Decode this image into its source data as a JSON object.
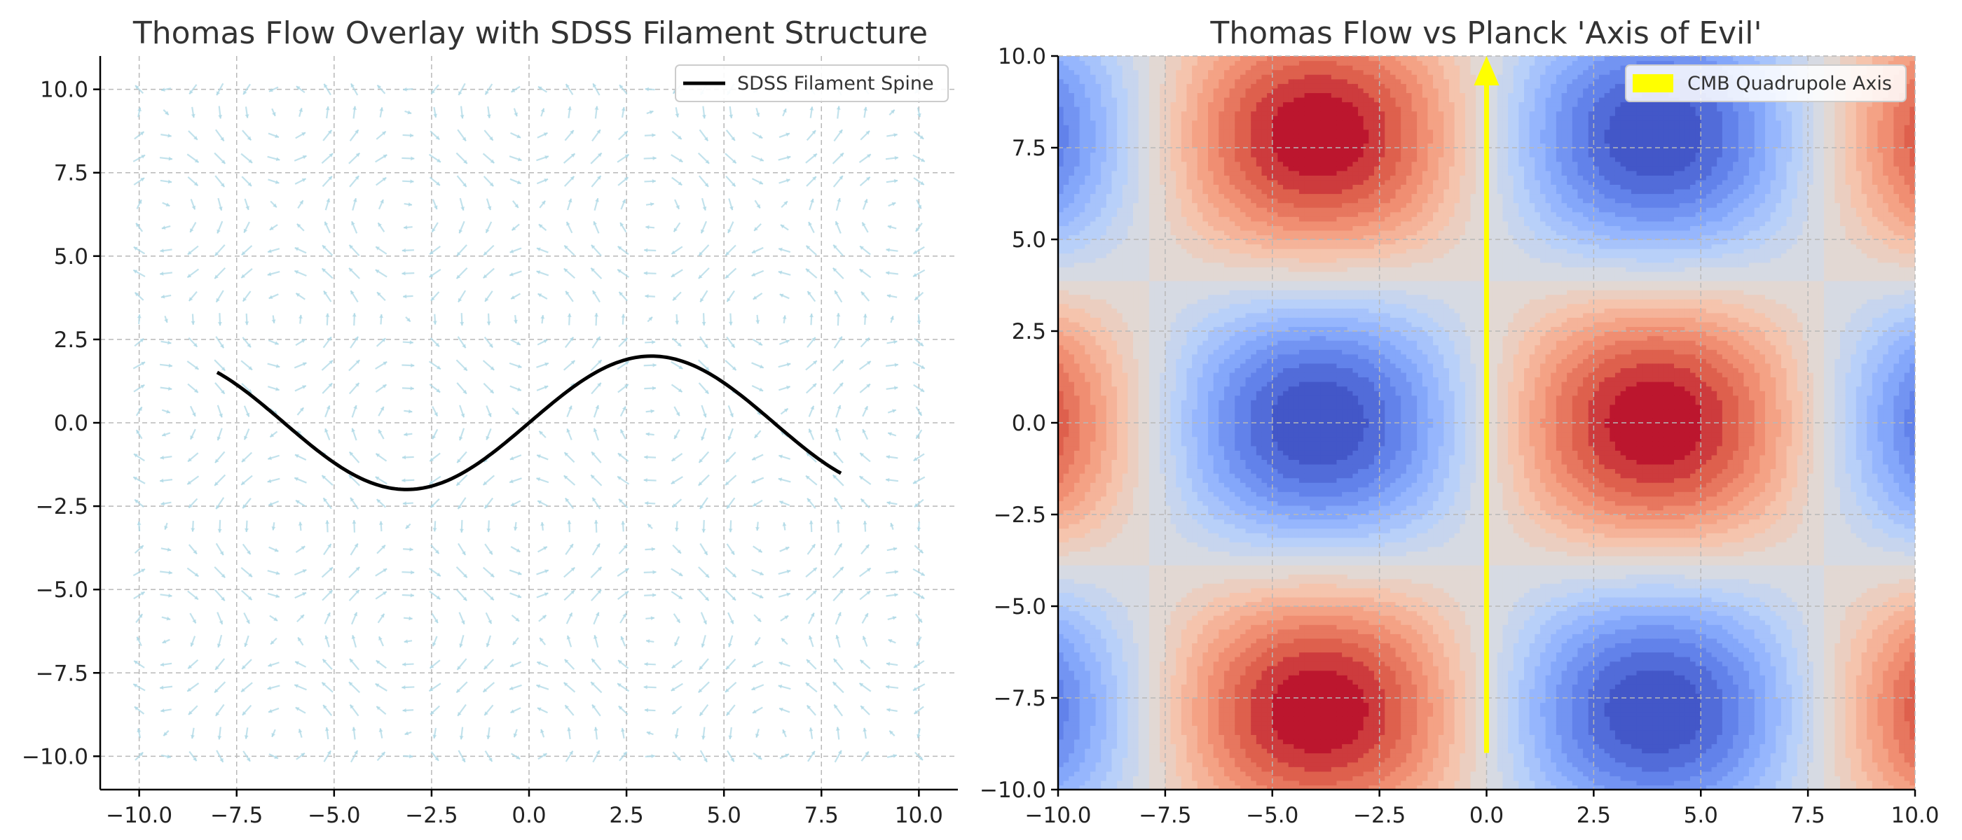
{
  "chart_data": [
    {
      "type": "quiver",
      "title": "Thomas Flow Overlay with SDSS Filament Structure",
      "xlabel": "",
      "ylabel": "",
      "xlim": [
        -11,
        11
      ],
      "ylim": [
        -11,
        11
      ],
      "xticks": [
        -10.0,
        -7.5,
        -5.0,
        -2.5,
        0.0,
        2.5,
        5.0,
        7.5,
        10.0
      ],
      "yticks": [
        -10.0,
        -7.5,
        -5.0,
        -2.5,
        0.0,
        2.5,
        5.0,
        7.5,
        10.0
      ],
      "xtick_labels": [
        "−10.0",
        "−7.5",
        "−5.0",
        "−2.5",
        "0.0",
        "2.5",
        "5.0",
        "7.5",
        "10.0"
      ],
      "ytick_labels": [
        "−10.0",
        "−7.5",
        "−5.0",
        "−2.5",
        "0.0",
        "2.5",
        "5.0",
        "7.5",
        "10.0"
      ],
      "grid": true,
      "vector_field": {
        "x_range": [
          -10,
          10
        ],
        "y_range": [
          -10,
          10
        ],
        "grid_points": 30,
        "u": "sin(y)",
        "v": "sin(x)",
        "color": "#add8e6"
      },
      "series": [
        {
          "name": "SDSS Filament Spine",
          "type": "line",
          "x_range": [
            -8,
            8
          ],
          "function": "2*sin(x/2)",
          "color": "#000000"
        }
      ],
      "legend": {
        "position": "upper-right",
        "entries": [
          "SDSS Filament Spine"
        ]
      }
    },
    {
      "type": "contourf",
      "title": "Thomas Flow vs Planck 'Axis of Evil'",
      "xlabel": "",
      "ylabel": "",
      "xlim": [
        -10,
        10
      ],
      "ylim": [
        -10,
        10
      ],
      "xticks": [
        -10.0,
        -7.5,
        -5.0,
        -2.5,
        0.0,
        2.5,
        5.0,
        7.5,
        10.0
      ],
      "yticks": [
        -10.0,
        -7.5,
        -5.0,
        -2.5,
        0.0,
        2.5,
        5.0,
        7.5,
        10.0
      ],
      "xtick_labels": [
        "−10.0",
        "−7.5",
        "−5.0",
        "−2.5",
        "0.0",
        "2.5",
        "5.0",
        "7.5",
        "10.0"
      ],
      "ytick_labels": [
        "−10.0",
        "−7.5",
        "−5.0",
        "−2.5",
        "0.0",
        "2.5",
        "5.0",
        "7.5",
        "10.0"
      ],
      "grid": true,
      "field": "sin(x/2.5) * cos(y/2.5)",
      "colormap": "coolwarm",
      "levels": 20,
      "series": [
        {
          "name": "CMB Quadrupole Axis",
          "type": "arrow",
          "from": [
            0,
            -9
          ],
          "to": [
            0,
            10
          ],
          "color": "#ffff00"
        }
      ],
      "legend": {
        "position": "upper-right",
        "entries": [
          "CMB Quadrupole Axis"
        ]
      }
    }
  ]
}
